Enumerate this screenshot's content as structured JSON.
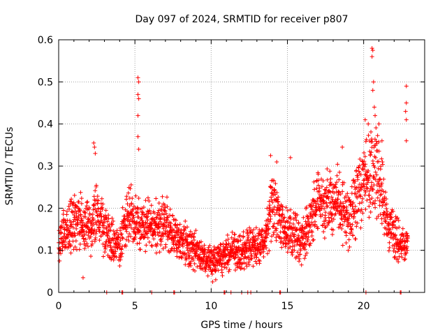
{
  "chart_data": {
    "type": "scatter",
    "title": "Day 097 of 2024, SRMTID for receiver p807",
    "xlabel": "GPS time / hours",
    "ylabel": "SRMTID / TECUs",
    "xlim": [
      0,
      24
    ],
    "ylim": [
      0,
      0.6
    ],
    "x_ticks": [
      0,
      5,
      10,
      15,
      20
    ],
    "y_ticks": [
      0,
      0.1,
      0.2,
      0.3,
      0.4,
      0.5,
      0.6
    ],
    "x_tick_labels": [
      "0",
      "5",
      "10",
      "15",
      "20"
    ],
    "y_tick_labels": [
      "0",
      "0.1",
      "0.2",
      "0.3",
      "0.4",
      "0.5",
      "0.6"
    ],
    "grid": true,
    "marker": "+",
    "colors": {
      "series": "#ff0000",
      "grid": "#a0a0a0",
      "axes": "#000000"
    },
    "series": [
      {
        "name": "SRMTID",
        "trend": [
          [
            0.0,
            0.12
          ],
          [
            0.5,
            0.15
          ],
          [
            1.0,
            0.17
          ],
          [
            1.5,
            0.16
          ],
          [
            2.0,
            0.15
          ],
          [
            2.5,
            0.19
          ],
          [
            3.0,
            0.14
          ],
          [
            3.5,
            0.12
          ],
          [
            4.0,
            0.11
          ],
          [
            4.5,
            0.18
          ],
          [
            5.0,
            0.17
          ],
          [
            5.5,
            0.15
          ],
          [
            6.0,
            0.16
          ],
          [
            6.5,
            0.15
          ],
          [
            7.0,
            0.17
          ],
          [
            7.5,
            0.14
          ],
          [
            8.0,
            0.13
          ],
          [
            8.5,
            0.11
          ],
          [
            9.0,
            0.1
          ],
          [
            9.5,
            0.08
          ],
          [
            10.0,
            0.07
          ],
          [
            10.5,
            0.08
          ],
          [
            11.0,
            0.09
          ],
          [
            11.5,
            0.1
          ],
          [
            12.0,
            0.1
          ],
          [
            12.5,
            0.11
          ],
          [
            13.0,
            0.11
          ],
          [
            13.5,
            0.12
          ],
          [
            14.0,
            0.21
          ],
          [
            14.5,
            0.16
          ],
          [
            15.0,
            0.14
          ],
          [
            15.5,
            0.13
          ],
          [
            16.0,
            0.12
          ],
          [
            16.5,
            0.17
          ],
          [
            17.0,
            0.2
          ],
          [
            17.5,
            0.21
          ],
          [
            18.0,
            0.22
          ],
          [
            18.5,
            0.2
          ],
          [
            19.0,
            0.17
          ],
          [
            19.5,
            0.22
          ],
          [
            20.0,
            0.25
          ],
          [
            20.5,
            0.3
          ],
          [
            21.0,
            0.27
          ],
          [
            21.5,
            0.17
          ],
          [
            22.0,
            0.14
          ],
          [
            22.5,
            0.11
          ],
          [
            22.9,
            0.11
          ]
        ],
        "peaks": [
          [
            5.2,
            0.51
          ],
          [
            5.25,
            0.5
          ],
          [
            5.2,
            0.47
          ],
          [
            5.25,
            0.46
          ],
          [
            5.2,
            0.42
          ],
          [
            5.2,
            0.37
          ],
          [
            5.25,
            0.34
          ],
          [
            2.3,
            0.355
          ],
          [
            2.35,
            0.345
          ],
          [
            2.4,
            0.33
          ],
          [
            13.9,
            0.325
          ],
          [
            14.3,
            0.31
          ],
          [
            15.2,
            0.32
          ],
          [
            18.6,
            0.345
          ],
          [
            20.1,
            0.41
          ],
          [
            20.3,
            0.4
          ],
          [
            20.55,
            0.58
          ],
          [
            20.6,
            0.575
          ],
          [
            20.55,
            0.56
          ],
          [
            20.65,
            0.5
          ],
          [
            20.6,
            0.48
          ],
          [
            20.7,
            0.44
          ],
          [
            20.75,
            0.42
          ],
          [
            21.0,
            0.4
          ],
          [
            21.2,
            0.36
          ],
          [
            22.8,
            0.49
          ],
          [
            22.8,
            0.45
          ],
          [
            22.75,
            0.43
          ],
          [
            22.8,
            0.41
          ],
          [
            22.8,
            0.36
          ],
          [
            1.6,
            0.035
          ],
          [
            10.3,
            0.03
          ],
          [
            10.1,
            0.025
          ]
        ],
        "baseline_markers": [
          3.15,
          4.15,
          4.2,
          6.1,
          7.55,
          7.6,
          10.85,
          10.9,
          11.3,
          12.0,
          12.4,
          12.6,
          14.5,
          14.55,
          20.15,
          22.4,
          22.45
        ],
        "sample_interval_hours": 0.0065,
        "samples_per_step": 3
      }
    ]
  }
}
